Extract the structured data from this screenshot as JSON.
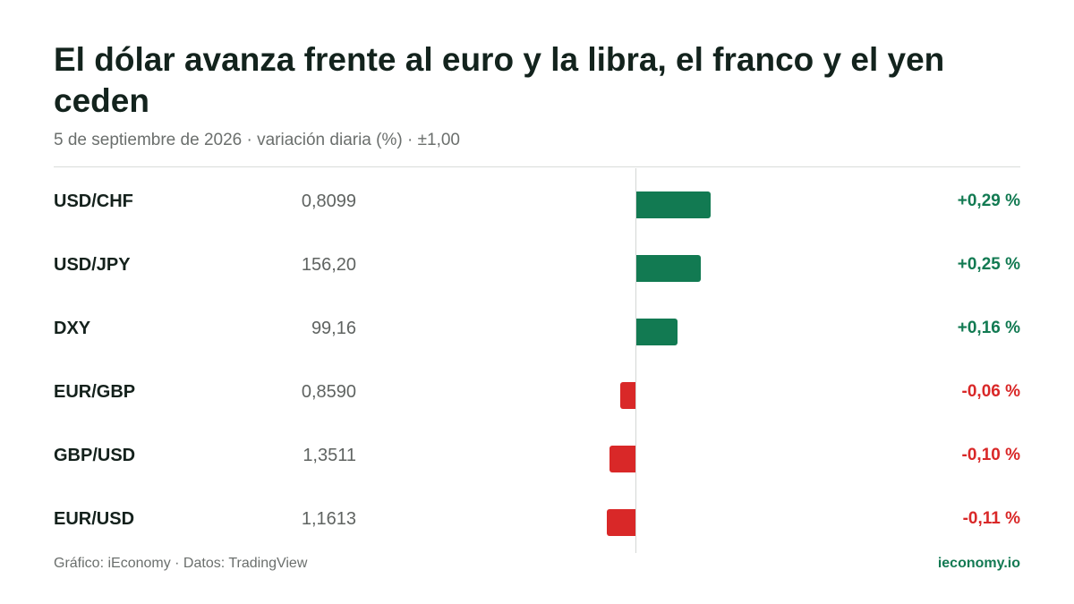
{
  "header": {
    "title": "El dólar avanza frente al euro y la libra, el franco y el yen ceden",
    "subtitle": "5 de septiembre de 2026 · variación diaria (%) · ±1,00"
  },
  "colors": {
    "positive": "#127a52",
    "negative": "#d92828",
    "axis": "#d4d7d5"
  },
  "chart_data": {
    "type": "bar",
    "orientation": "horizontal",
    "title": "El dólar avanza frente al euro y la libra, el franco y el yen ceden",
    "subtitle": "5 de septiembre de 2026 · variación diaria (%) · ±1,00",
    "xlim": [
      -1,
      1
    ],
    "grid": false,
    "categories": [
      "USD/CHF",
      "USD/JPY",
      "DXY",
      "EUR/GBP",
      "GBP/USD",
      "EUR/USD"
    ],
    "values": [
      0.29,
      0.25,
      0.16,
      -0.06,
      -0.1,
      -0.11
    ],
    "rows": [
      {
        "pair": "USD/CHF",
        "price": "0,8099",
        "change": 0.29,
        "change_label": "+0,29 %"
      },
      {
        "pair": "USD/JPY",
        "price": "156,20",
        "change": 0.25,
        "change_label": "+0,25 %"
      },
      {
        "pair": "DXY",
        "price": "99,16",
        "change": 0.16,
        "change_label": "+0,16 %"
      },
      {
        "pair": "EUR/GBP",
        "price": "0,8590",
        "change": -0.06,
        "change_label": "-0,06 %"
      },
      {
        "pair": "GBP/USD",
        "price": "1,3511",
        "change": -0.1,
        "change_label": "-0,10 %"
      },
      {
        "pair": "EUR/USD",
        "price": "1,1613",
        "change": -0.11,
        "change_label": "-0,11 %"
      }
    ]
  },
  "footer": {
    "source": "Gráfico: iEconomy · Datos: TradingView",
    "brand": "ieconomy.io"
  }
}
